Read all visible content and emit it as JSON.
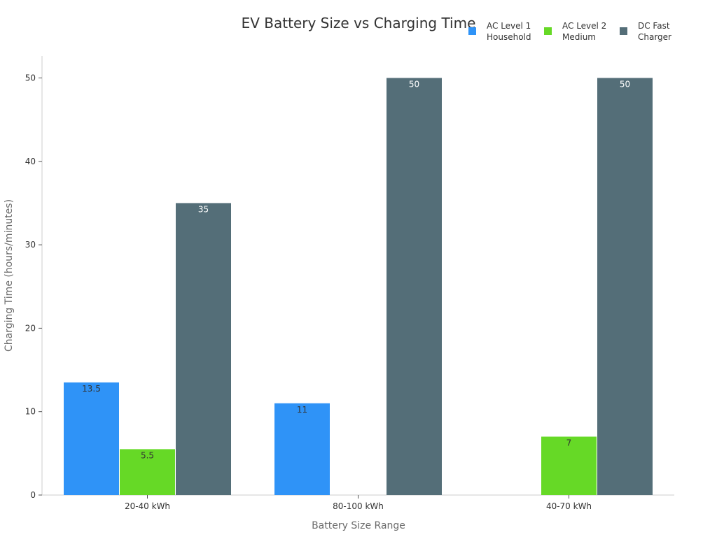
{
  "chart_data": {
    "type": "bar",
    "title": "EV Battery Size vs Charging Time",
    "xlabel": "Battery Size Range",
    "ylabel": "Charging Time (hours/minutes)",
    "categories": [
      "20-40 kWh",
      "80-100 kWh",
      "40-70 kWh"
    ],
    "ylim": [
      0,
      52
    ],
    "yticks": [
      0,
      10,
      20,
      30,
      40,
      50
    ],
    "legend_position": "top-right",
    "series": [
      {
        "name": "AC Level 1 Household",
        "legend_lines": [
          "AC Level 1",
          "Household"
        ],
        "color": "#2f93f7",
        "label_color": "#333333",
        "values": [
          13.5,
          11,
          null
        ],
        "labels": [
          "13.5",
          "11",
          ""
        ]
      },
      {
        "name": "AC Level 2 Medium",
        "legend_lines": [
          "AC Level 2",
          "Medium"
        ],
        "color": "#66d926",
        "label_color": "#333333",
        "values": [
          5.5,
          null,
          7
        ],
        "labels": [
          "5.5",
          "",
          "7"
        ]
      },
      {
        "name": "DC Fast Charger",
        "legend_lines": [
          "DC Fast",
          "Charger"
        ],
        "color": "#546e78",
        "label_color": "#ffffff",
        "values": [
          35,
          50,
          50
        ],
        "labels": [
          "35",
          "50",
          "50"
        ]
      }
    ]
  }
}
